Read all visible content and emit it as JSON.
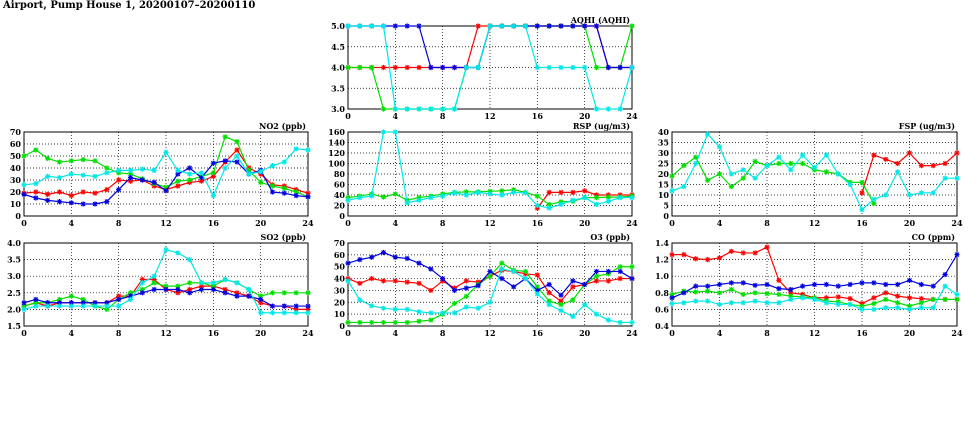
{
  "page": {
    "title": "Airport, Pump House 1, 20200107–20200110"
  },
  "colors": {
    "series_1": "#ff0000",
    "series_2": "#00e000",
    "series_3": "#0000e0",
    "series_4": "#00e8e8",
    "grid": "#000000"
  },
  "chart_data": [
    {
      "type": "line",
      "title": "AQHI (AQHI)",
      "x": [
        0,
        1,
        2,
        3,
        4,
        5,
        6,
        7,
        8,
        9,
        10,
        11,
        12,
        13,
        14,
        15,
        16,
        17,
        18,
        19,
        20,
        21,
        22,
        23,
        24
      ],
      "xticks": [
        0,
        4,
        8,
        12,
        16,
        20,
        24
      ],
      "ylim": [
        3.0,
        5.0
      ],
      "yticks": [
        "3.0",
        "3.5",
        "4.0",
        "4.5",
        "5.0"
      ],
      "series": [
        {
          "color": "#ff0000",
          "values": [
            4,
            4,
            4,
            4,
            4,
            4,
            4,
            4,
            4,
            4,
            4,
            5,
            5,
            5,
            5,
            5,
            5,
            5,
            5,
            5,
            5,
            5,
            4,
            4,
            4
          ]
        },
        {
          "color": "#00e000",
          "values": [
            4,
            4,
            4,
            3,
            3,
            3,
            3,
            3,
            3,
            3,
            4,
            4,
            5,
            5,
            5,
            5,
            5,
            5,
            5,
            5,
            5,
            4,
            4,
            4,
            5
          ]
        },
        {
          "color": "#0000e0",
          "values": [
            5,
            5,
            5,
            5,
            5,
            5,
            5,
            4,
            4,
            4,
            4,
            4,
            5,
            5,
            5,
            5,
            5,
            5,
            5,
            5,
            5,
            5,
            4,
            4,
            4
          ]
        },
        {
          "color": "#00e8e8",
          "values": [
            5,
            5,
            5,
            5,
            3,
            3,
            3,
            3,
            3,
            3,
            4,
            4,
            5,
            5,
            5,
            5,
            4,
            4,
            4,
            4,
            4,
            3,
            3,
            3,
            4
          ]
        }
      ]
    },
    {
      "type": "line",
      "title": "NO2 (ppb)",
      "x": [
        0,
        1,
        2,
        3,
        4,
        5,
        6,
        7,
        8,
        9,
        10,
        11,
        12,
        13,
        14,
        15,
        16,
        17,
        18,
        19,
        20,
        21,
        22,
        23,
        24
      ],
      "xticks": [
        0,
        4,
        8,
        12,
        16,
        20,
        24
      ],
      "ylim": [
        0,
        70
      ],
      "yticks": [
        "0",
        "10",
        "20",
        "30",
        "40",
        "50",
        "60",
        "70"
      ],
      "series": [
        {
          "color": "#ff0000",
          "values": [
            19,
            20,
            18,
            20,
            17,
            20,
            19,
            22,
            30,
            29,
            30,
            25,
            22,
            25,
            28,
            29,
            33,
            45,
            55,
            40,
            35,
            26,
            25,
            22,
            19
          ]
        },
        {
          "color": "#00e000",
          "values": [
            50,
            55,
            48,
            45,
            46,
            47,
            46,
            40,
            36,
            35,
            31,
            27,
            24,
            29,
            30,
            33,
            36,
            66,
            62,
            38,
            28,
            25,
            23,
            20,
            16
          ]
        },
        {
          "color": "#0000e0",
          "values": [
            18,
            15,
            13,
            12,
            11,
            10,
            10,
            12,
            22,
            32,
            30,
            28,
            21,
            35,
            40,
            32,
            44,
            46,
            45,
            35,
            38,
            20,
            19,
            17,
            16
          ]
        },
        {
          "color": "#00e8e8",
          "values": [
            26,
            27,
            33,
            32,
            35,
            34,
            33,
            36,
            38,
            38,
            39,
            38,
            53,
            38,
            35,
            36,
            17,
            40,
            50,
            35,
            37,
            42,
            45,
            56,
            55
          ]
        }
      ]
    },
    {
      "type": "line",
      "title": "RSP (ug/m3)",
      "x": [
        0,
        1,
        2,
        3,
        4,
        5,
        6,
        7,
        8,
        9,
        10,
        11,
        12,
        13,
        14,
        15,
        16,
        17,
        18,
        19,
        20,
        21,
        22,
        23,
        24
      ],
      "xticks": [
        0,
        4,
        8,
        12,
        16,
        20,
        24
      ],
      "ylim": [
        0,
        160
      ],
      "yticks": [
        "0",
        "20",
        "40",
        "60",
        "80",
        "100",
        "120",
        "140",
        "160"
      ],
      "series": [
        {
          "color": "#ff0000",
          "values": [
            null,
            null,
            null,
            null,
            null,
            null,
            null,
            null,
            null,
            null,
            null,
            null,
            null,
            null,
            null,
            null,
            15,
            45,
            45,
            45,
            48,
            40,
            40,
            40,
            40
          ]
        },
        {
          "color": "#00e000",
          "values": [
            35,
            38,
            42,
            36,
            42,
            30,
            35,
            38,
            42,
            45,
            46,
            46,
            47,
            48,
            50,
            45,
            38,
            22,
            27,
            28,
            35,
            35,
            36,
            36,
            38
          ]
        },
        {
          "color": "#0000e0",
          "values": [
            null,
            null,
            null,
            null,
            null,
            null,
            null,
            null,
            null,
            null,
            null,
            null,
            null,
            null,
            null,
            null,
            null,
            null,
            null,
            null,
            null,
            null,
            null,
            null,
            null
          ]
        },
        {
          "color": "#00e8e8",
          "values": [
            30,
            35,
            38,
            160,
            160,
            25,
            30,
            35,
            38,
            44,
            40,
            45,
            42,
            40,
            45,
            44,
            20,
            15,
            22,
            30,
            35,
            22,
            28,
            35,
            35
          ]
        }
      ]
    },
    {
      "type": "line",
      "title": "FSP (ug/m3)",
      "x": [
        0,
        1,
        2,
        3,
        4,
        5,
        6,
        7,
        8,
        9,
        10,
        11,
        12,
        13,
        14,
        15,
        16,
        17,
        18,
        19,
        20,
        21,
        22,
        23,
        24
      ],
      "xticks": [
        0,
        4,
        8,
        12,
        16,
        20,
        24
      ],
      "ylim": [
        0,
        40
      ],
      "yticks": [
        "0",
        "5",
        "10",
        "15",
        "20",
        "25",
        "30",
        "35",
        "40"
      ],
      "series": [
        {
          "color": "#ff0000",
          "values": [
            null,
            null,
            null,
            null,
            null,
            null,
            null,
            null,
            null,
            null,
            null,
            null,
            null,
            null,
            null,
            null,
            11,
            29,
            27,
            25,
            30,
            24,
            24,
            25,
            30
          ]
        },
        {
          "color": "#00e000",
          "values": [
            19,
            24,
            28,
            17,
            20,
            14,
            18,
            26,
            24,
            25,
            25,
            25,
            22,
            21,
            20,
            16,
            16,
            6,
            null,
            null,
            null,
            null,
            null,
            null,
            null
          ]
        },
        {
          "color": "#0000e0",
          "values": [
            null,
            null,
            null,
            null,
            null,
            null,
            null,
            null,
            null,
            null,
            null,
            null,
            null,
            null,
            null,
            null,
            null,
            null,
            null,
            null,
            null,
            null,
            null,
            null,
            null
          ]
        },
        {
          "color": "#00e8e8",
          "values": [
            12,
            14,
            25,
            39,
            33,
            20,
            22,
            18,
            24,
            28,
            22,
            29,
            23,
            29,
            20,
            15,
            3,
            8,
            10,
            21,
            10,
            11,
            11,
            18,
            18
          ]
        }
      ]
    },
    {
      "type": "line",
      "title": "SO2 (ppb)",
      "x": [
        0,
        1,
        2,
        3,
        4,
        5,
        6,
        7,
        8,
        9,
        10,
        11,
        12,
        13,
        14,
        15,
        16,
        17,
        18,
        19,
        20,
        21,
        22,
        23,
        24
      ],
      "xticks": [
        0,
        4,
        8,
        12,
        16,
        20,
        24
      ],
      "ylim": [
        1.5,
        4.0
      ],
      "yticks": [
        "1.5",
        "2.0",
        "2.5",
        "3.0",
        "3.5",
        "4.0"
      ],
      "series": [
        {
          "color": "#ff0000",
          "values": [
            2.1,
            2.2,
            2.1,
            2.2,
            2.2,
            2.2,
            2.2,
            2.2,
            2.4,
            2.4,
            2.9,
            2.9,
            2.6,
            2.5,
            2.6,
            2.7,
            2.7,
            2.6,
            2.5,
            2.4,
            2.2,
            2.1,
            2.1,
            2.0,
            2.0
          ]
        },
        {
          "color": "#00e000",
          "values": [
            2.1,
            2.2,
            2.2,
            2.3,
            2.4,
            2.3,
            2.1,
            2.0,
            2.3,
            2.5,
            2.6,
            2.8,
            2.7,
            2.7,
            2.8,
            2.8,
            2.7,
            2.9,
            2.8,
            2.6,
            2.4,
            2.5,
            2.5,
            2.5,
            2.5
          ]
        },
        {
          "color": "#0000e0",
          "values": [
            2.2,
            2.3,
            2.2,
            2.2,
            2.2,
            2.2,
            2.2,
            2.2,
            2.3,
            2.4,
            2.5,
            2.6,
            2.6,
            2.6,
            2.5,
            2.6,
            2.6,
            2.5,
            2.4,
            2.4,
            2.3,
            2.1,
            2.1,
            2.1,
            2.1
          ]
        },
        {
          "color": "#00e8e8",
          "values": [
            2.0,
            2.1,
            2.1,
            2.1,
            2.1,
            2.1,
            2.1,
            2.1,
            2.1,
            2.3,
            2.8,
            3.0,
            3.8,
            3.7,
            3.5,
            2.8,
            2.8,
            2.9,
            2.8,
            2.6,
            1.9,
            1.9,
            1.9,
            1.9,
            1.9
          ]
        }
      ]
    },
    {
      "type": "line",
      "title": "O3 (ppb)",
      "x": [
        0,
        1,
        2,
        3,
        4,
        5,
        6,
        7,
        8,
        9,
        10,
        11,
        12,
        13,
        14,
        15,
        16,
        17,
        18,
        19,
        20,
        21,
        22,
        23,
        24
      ],
      "xticks": [
        0,
        4,
        8,
        12,
        16,
        20,
        24
      ],
      "ylim": [
        0,
        70
      ],
      "yticks": [
        "0",
        "10",
        "20",
        "30",
        "40",
        "50",
        "60",
        "70"
      ],
      "series": [
        {
          "color": "#ff0000",
          "values": [
            40,
            36,
            40,
            38,
            38,
            37,
            36,
            30,
            38,
            32,
            38,
            37,
            42,
            47,
            46,
            44,
            43,
            28,
            21,
            33,
            35,
            38,
            38,
            40,
            40
          ]
        },
        {
          "color": "#00e000",
          "values": [
            3,
            3,
            3,
            3,
            3,
            3,
            4,
            5,
            10,
            19,
            25,
            35,
            42,
            53,
            47,
            46,
            33,
            21,
            18,
            22,
            35,
            42,
            44,
            50,
            50
          ]
        },
        {
          "color": "#0000e0",
          "values": [
            53,
            56,
            58,
            62,
            58,
            57,
            53,
            48,
            40,
            30,
            32,
            34,
            46,
            40,
            33,
            40,
            30,
            35,
            26,
            38,
            35,
            46,
            46,
            46,
            40
          ]
        },
        {
          "color": "#00e8e8",
          "values": [
            38,
            22,
            17,
            15,
            14,
            14,
            12,
            11,
            11,
            11,
            16,
            15,
            20,
            48,
            46,
            40,
            27,
            18,
            13,
            8,
            18,
            10,
            5,
            3,
            3
          ]
        }
      ]
    },
    {
      "type": "line",
      "title": "CO (ppm)",
      "x": [
        0,
        1,
        2,
        3,
        4,
        5,
        6,
        7,
        8,
        9,
        10,
        11,
        12,
        13,
        14,
        15,
        16,
        17,
        18,
        19,
        20,
        21,
        22,
        23,
        24
      ],
      "xticks": [
        0,
        4,
        8,
        12,
        16,
        20,
        24
      ],
      "ylim": [
        0.4,
        1.4
      ],
      "yticks": [
        "0.4",
        "0.6",
        "0.8",
        "1.0",
        "1.2",
        "1.4"
      ],
      "series": [
        {
          "color": "#ff0000",
          "values": [
            1.26,
            1.26,
            1.21,
            1.2,
            1.22,
            1.3,
            1.28,
            1.28,
            1.35,
            0.95,
            0.8,
            0.78,
            0.74,
            0.74,
            0.75,
            0.73,
            0.67,
            0.74,
            0.8,
            0.76,
            0.74,
            0.73,
            0.72,
            0.72,
            0.72
          ]
        },
        {
          "color": "#00e000",
          "values": [
            0.78,
            0.82,
            0.81,
            0.82,
            0.8,
            0.84,
            0.78,
            0.8,
            0.79,
            0.78,
            0.76,
            0.75,
            0.74,
            0.7,
            0.69,
            0.66,
            0.64,
            0.67,
            0.72,
            0.68,
            0.64,
            0.68,
            0.72,
            0.72,
            0.72
          ]
        },
        {
          "color": "#0000e0",
          "values": [
            0.74,
            0.8,
            0.88,
            0.88,
            0.9,
            0.92,
            0.92,
            0.89,
            0.9,
            0.85,
            0.84,
            0.88,
            0.9,
            0.9,
            0.88,
            0.9,
            0.92,
            0.92,
            0.9,
            0.9,
            0.95,
            0.9,
            0.88,
            1.02,
            1.26
          ]
        },
        {
          "color": "#00e8e8",
          "values": [
            0.67,
            0.68,
            0.7,
            0.7,
            0.66,
            0.68,
            0.68,
            0.7,
            0.68,
            0.68,
            0.72,
            0.74,
            0.72,
            0.68,
            0.66,
            0.66,
            0.6,
            0.6,
            0.62,
            0.62,
            0.6,
            0.62,
            0.62,
            0.88,
            0.78
          ]
        }
      ]
    }
  ]
}
